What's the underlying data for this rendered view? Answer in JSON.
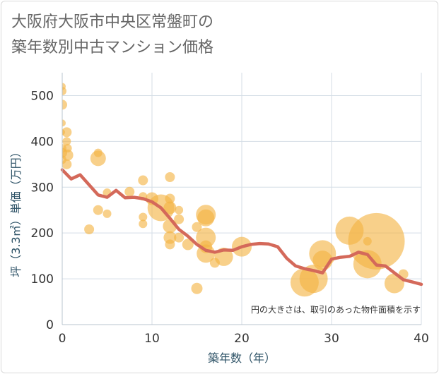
{
  "chart_data": {
    "type": "scatter",
    "title": [
      "大阪府大阪市中央区常盤町の",
      "築年数別中古マンション価格"
    ],
    "xlabel": "築年数（年）",
    "ylabel": "坪（3.3㎡）単価（万円）",
    "xlim": [
      0,
      40
    ],
    "ylim": [
      0,
      550
    ],
    "xticks": [
      "0",
      "10",
      "20",
      "30",
      "40"
    ],
    "yticks": [
      "0",
      "100",
      "200",
      "300",
      "400",
      "500"
    ],
    "grid": true,
    "annotation": "円の大きさは、取引のあった物件面積を示す",
    "colors": {
      "bubble": "#f4b342",
      "line": "#d4695a",
      "grid": "#d4dde6"
    },
    "series": [
      {
        "type": "scatter",
        "points": [
          {
            "x": 0,
            "y": 520,
            "s": 5
          },
          {
            "x": 0,
            "y": 510,
            "s": 6
          },
          {
            "x": 0,
            "y": 480,
            "s": 7
          },
          {
            "x": 0,
            "y": 440,
            "s": 5
          },
          {
            "x": 0,
            "y": 420,
            "s": 4
          },
          {
            "x": 0,
            "y": 385,
            "s": 6
          },
          {
            "x": 0,
            "y": 375,
            "s": 7
          },
          {
            "x": 0,
            "y": 360,
            "s": 6
          },
          {
            "x": 0.5,
            "y": 420,
            "s": 7
          },
          {
            "x": 0.5,
            "y": 400,
            "s": 6
          },
          {
            "x": 0.6,
            "y": 385,
            "s": 6
          },
          {
            "x": 0.6,
            "y": 370,
            "s": 8
          },
          {
            "x": 0.5,
            "y": 350,
            "s": 7
          },
          {
            "x": 3,
            "y": 208,
            "s": 7
          },
          {
            "x": 4,
            "y": 375,
            "s": 6
          },
          {
            "x": 4,
            "y": 363,
            "s": 11
          },
          {
            "x": 4,
            "y": 250,
            "s": 7
          },
          {
            "x": 5,
            "y": 288,
            "s": 6
          },
          {
            "x": 5,
            "y": 242,
            "s": 6
          },
          {
            "x": 7.5,
            "y": 290,
            "s": 7
          },
          {
            "x": 9,
            "y": 315,
            "s": 7
          },
          {
            "x": 9,
            "y": 280,
            "s": 6
          },
          {
            "x": 9,
            "y": 235,
            "s": 6
          },
          {
            "x": 9,
            "y": 220,
            "s": 6
          },
          {
            "x": 10,
            "y": 275,
            "s": 9
          },
          {
            "x": 11,
            "y": 255,
            "s": 19
          },
          {
            "x": 12,
            "y": 322,
            "s": 7
          },
          {
            "x": 12,
            "y": 275,
            "s": 7
          },
          {
            "x": 12,
            "y": 255,
            "s": 9
          },
          {
            "x": 12,
            "y": 215,
            "s": 10
          },
          {
            "x": 12,
            "y": 190,
            "s": 9
          },
          {
            "x": 12,
            "y": 175,
            "s": 7
          },
          {
            "x": 13,
            "y": 250,
            "s": 6
          },
          {
            "x": 13,
            "y": 230,
            "s": 7
          },
          {
            "x": 13,
            "y": 190,
            "s": 7
          },
          {
            "x": 14,
            "y": 175,
            "s": 8
          },
          {
            "x": 15,
            "y": 213,
            "s": 7
          },
          {
            "x": 15,
            "y": 79,
            "s": 8
          },
          {
            "x": 16,
            "y": 240,
            "s": 14
          },
          {
            "x": 16,
            "y": 233,
            "s": 12
          },
          {
            "x": 16,
            "y": 190,
            "s": 14
          },
          {
            "x": 16,
            "y": 170,
            "s": 9
          },
          {
            "x": 16,
            "y": 155,
            "s": 13
          },
          {
            "x": 17,
            "y": 135,
            "s": 7
          },
          {
            "x": 18,
            "y": 148,
            "s": 13
          },
          {
            "x": 20,
            "y": 170,
            "s": 14
          },
          {
            "x": 27,
            "y": 92,
            "s": 20
          },
          {
            "x": 28,
            "y": 100,
            "s": 20
          },
          {
            "x": 29,
            "y": 155,
            "s": 19
          },
          {
            "x": 29,
            "y": 140,
            "s": 14
          },
          {
            "x": 32,
            "y": 205,
            "s": 20
          },
          {
            "x": 34,
            "y": 132,
            "s": 20
          },
          {
            "x": 34,
            "y": 182,
            "s": 6
          },
          {
            "x": 35,
            "y": 182,
            "s": 40
          },
          {
            "x": 37,
            "y": 90,
            "s": 14
          },
          {
            "x": 38,
            "y": 110,
            "s": 7
          }
        ]
      },
      {
        "type": "line",
        "x": [
          0,
          1,
          2,
          3,
          4,
          5,
          6,
          7,
          8,
          9,
          10,
          11,
          12,
          13,
          14,
          15,
          16,
          17,
          18,
          19,
          20,
          21,
          22,
          23,
          24,
          25,
          26,
          27,
          28,
          29,
          30,
          31,
          32,
          33,
          34,
          35,
          36,
          37,
          38,
          39,
          40
        ],
        "y": [
          338,
          318,
          327,
          305,
          283,
          278,
          293,
          277,
          278,
          275,
          268,
          255,
          232,
          208,
          193,
          175,
          162,
          158,
          163,
          162,
          170,
          175,
          177,
          176,
          170,
          145,
          128,
          122,
          118,
          113,
          143,
          147,
          149,
          158,
          153,
          130,
          128,
          113,
          98,
          93,
          88
        ]
      }
    ]
  }
}
